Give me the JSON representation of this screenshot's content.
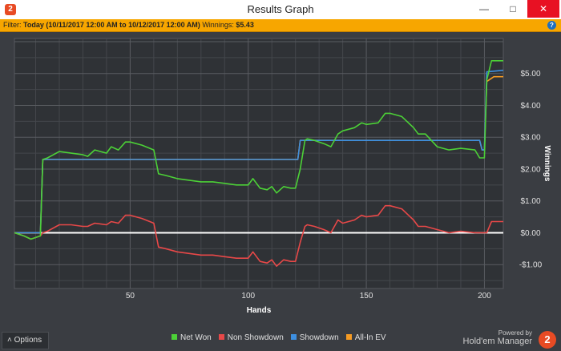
{
  "window": {
    "title": "Results Graph",
    "icon": "hm2-app-icon",
    "minimize_glyph": "—",
    "maximize_glyph": "□",
    "close_glyph": "✕"
  },
  "filter": {
    "label": "Filter:",
    "value": "Today (10/11/2017 12:00 AM to 10/12/2017 12:00 AM)",
    "winnings_label": "Winnings:",
    "winnings_value": "$5.43",
    "help_glyph": "?"
  },
  "chart_data": {
    "type": "line",
    "xlabel": "Hands",
    "ylabel": "Winnings",
    "xlim": [
      1,
      208
    ],
    "ylim": [
      -1.75,
      6.1
    ],
    "x_ticks": [
      50,
      100,
      150,
      200
    ],
    "x_tick_labels": [
      "50",
      "100",
      "150",
      "200"
    ],
    "y_ticks": [
      5,
      4,
      3,
      2,
      1,
      0,
      -1
    ],
    "y_tick_labels": [
      "$5.00",
      "$4.00",
      "$3.00",
      "$2.00",
      "$1.00",
      "$0.00",
      "-$1.00"
    ],
    "grid": true,
    "legend_position": "bottom",
    "series": [
      {
        "name": "Net Won",
        "color": "#4cd137",
        "x": [
          1,
          5,
          8,
          12,
          13,
          15,
          20,
          25,
          30,
          32,
          35,
          40,
          42,
          45,
          48,
          50,
          55,
          60,
          62,
          65,
          70,
          75,
          80,
          85,
          90,
          95,
          100,
          102,
          105,
          108,
          110,
          112,
          115,
          118,
          120,
          122,
          124,
          125,
          128,
          132,
          135,
          138,
          140,
          145,
          148,
          150,
          155,
          158,
          160,
          165,
          170,
          172,
          175,
          180,
          185,
          190,
          196,
          198,
          200,
          201,
          203,
          208
        ],
        "y": [
          0,
          -0.1,
          -0.2,
          -0.1,
          2.3,
          2.35,
          2.55,
          2.5,
          2.45,
          2.4,
          2.6,
          2.5,
          2.7,
          2.6,
          2.85,
          2.85,
          2.75,
          2.6,
          1.85,
          1.8,
          1.7,
          1.65,
          1.6,
          1.6,
          1.55,
          1.5,
          1.5,
          1.7,
          1.4,
          1.35,
          1.45,
          1.25,
          1.45,
          1.4,
          1.4,
          2.0,
          2.9,
          2.95,
          2.9,
          2.8,
          2.7,
          3.1,
          3.2,
          3.3,
          3.45,
          3.4,
          3.45,
          3.75,
          3.75,
          3.65,
          3.3,
          3.1,
          3.1,
          2.7,
          2.6,
          2.65,
          2.6,
          2.35,
          2.35,
          4.8,
          5.4,
          5.4
        ]
      },
      {
        "name": "Non Showdown",
        "color": "#e84848",
        "x": [
          1,
          5,
          8,
          12,
          13,
          15,
          20,
          25,
          30,
          32,
          35,
          40,
          42,
          45,
          48,
          50,
          55,
          60,
          62,
          65,
          70,
          75,
          80,
          85,
          90,
          95,
          100,
          102,
          105,
          108,
          110,
          112,
          115,
          118,
          120,
          122,
          124,
          125,
          128,
          132,
          135,
          138,
          140,
          145,
          148,
          150,
          155,
          158,
          160,
          165,
          170,
          172,
          175,
          180,
          185,
          190,
          196,
          198,
          200,
          201,
          203,
          208
        ],
        "y": [
          0,
          -0.1,
          -0.2,
          -0.1,
          0,
          0.05,
          0.25,
          0.25,
          0.2,
          0.2,
          0.3,
          0.25,
          0.35,
          0.3,
          0.55,
          0.55,
          0.45,
          0.3,
          -0.45,
          -0.5,
          -0.6,
          -0.65,
          -0.7,
          -0.7,
          -0.75,
          -0.8,
          -0.8,
          -0.6,
          -0.9,
          -0.95,
          -0.85,
          -1.05,
          -0.85,
          -0.9,
          -0.9,
          -0.3,
          0.2,
          0.25,
          0.2,
          0.1,
          0,
          0.4,
          0.3,
          0.4,
          0.55,
          0.5,
          0.55,
          0.85,
          0.85,
          0.75,
          0.4,
          0.2,
          0.2,
          0.1,
          0,
          0.05,
          0,
          0,
          0,
          0,
          0.35,
          0.35
        ]
      },
      {
        "name": "Showdown",
        "color": "#3d8fe0",
        "x": [
          1,
          12,
          13,
          121,
          122,
          198,
          199,
          200,
          201,
          208
        ],
        "y": [
          0,
          0,
          2.3,
          2.3,
          2.9,
          2.9,
          2.6,
          2.6,
          5.05,
          5.1
        ]
      },
      {
        "name": "All-In EV",
        "color": "#f59b23",
        "x": [
          1,
          12,
          13,
          121,
          122,
          198,
          199,
          200,
          201,
          204,
          208
        ],
        "y": [
          0,
          0,
          2.3,
          2.3,
          2.9,
          2.9,
          2.6,
          2.6,
          4.75,
          4.9,
          4.9
        ]
      }
    ]
  },
  "bottom": {
    "options_label": "Options",
    "options_icon": "chevron-up-icon",
    "powered_by": "Powered by",
    "brand": "Hold'em Manager",
    "brand_logo": "2"
  }
}
